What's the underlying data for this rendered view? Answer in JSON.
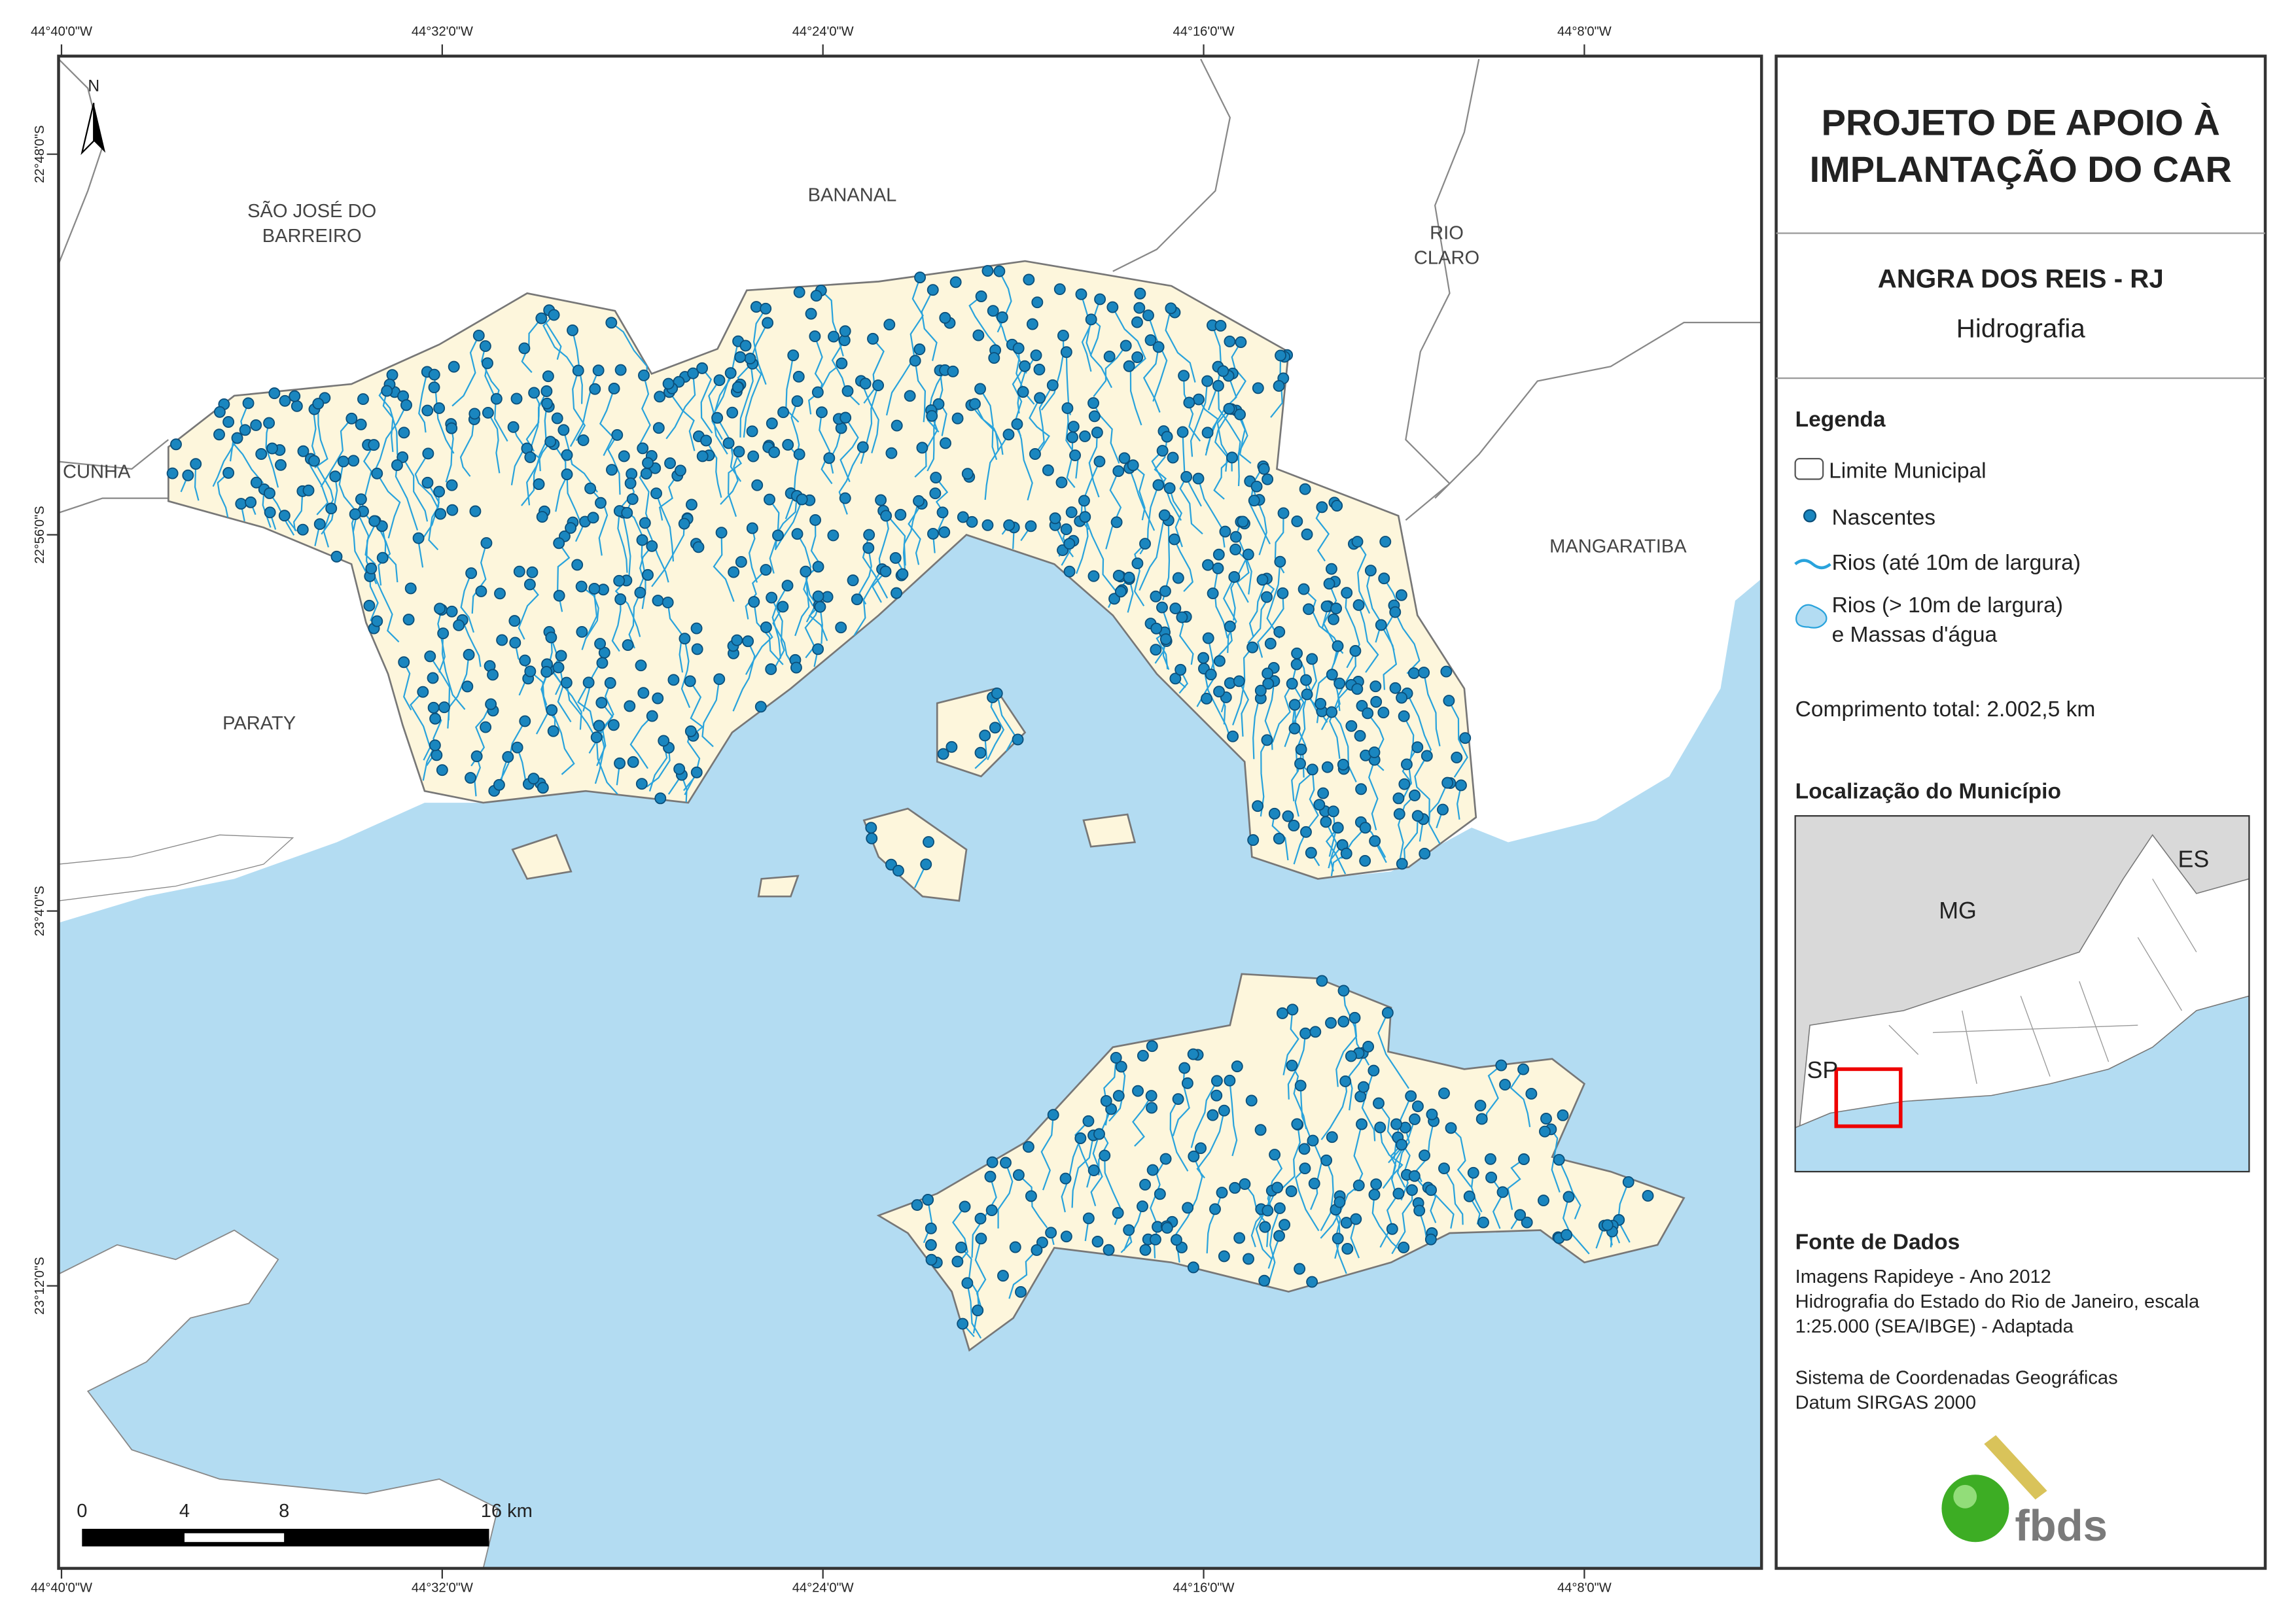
{
  "map": {
    "coordinates": {
      "top": [
        "44°40'0\"W",
        "44°32'0\"W",
        "44°24'0\"W",
        "44°16'0\"W",
        "44°8'0\"W"
      ],
      "bottom": [
        "44°40'0\"W",
        "44°32'0\"W",
        "44°24'0\"W",
        "44°16'0\"W",
        "44°8'0\"W"
      ],
      "left": [
        "22°48'0\"S",
        "22°56'0\"S",
        "23°4'0\"S",
        "23°12'0\"S"
      ]
    },
    "places": [
      [
        "SÃO JOSÉ DO",
        "BARREIRO"
      ],
      [
        "BANANAL"
      ],
      [
        "RIO",
        "CLARO"
      ],
      [
        "CUNHA"
      ],
      [
        "MANGARATIBA"
      ],
      [
        "PARATY"
      ]
    ],
    "north": "N",
    "scale_bar": [
      "0",
      "4",
      "8",
      "16 km"
    ]
  },
  "panel": {
    "title": [
      "PROJETO DE APOIO À",
      "IMPLANTAÇÃO DO CAR"
    ],
    "municipality": "ANGRA DOS REIS - RJ",
    "theme": "Hidrografia",
    "legend": {
      "title": "Legenda",
      "items": [
        [
          "Limite Municipal"
        ],
        [
          "Nascentes"
        ],
        [
          "Rios (até 10m de largura)"
        ],
        [
          "Rios (> 10m de largura)",
          "e Massas d'água"
        ]
      ]
    },
    "total_length": "Comprimento total:  2.002,5 km",
    "location": {
      "title": "Localização do Município",
      "labels": [
        "MG",
        "ES",
        "SP"
      ]
    },
    "sources": {
      "title": "Fonte de Dados",
      "lines": [
        "Imagens Rapideye - Ano 2012",
        "Hidrografia do Estado do Rio de Janeiro, escala",
        "1:25.000 (SEA/IBGE) - Adaptada",
        "Sistema de Coordenadas Geográficas",
        "Datum SIRGAS 2000"
      ]
    },
    "logo": "fbds"
  }
}
